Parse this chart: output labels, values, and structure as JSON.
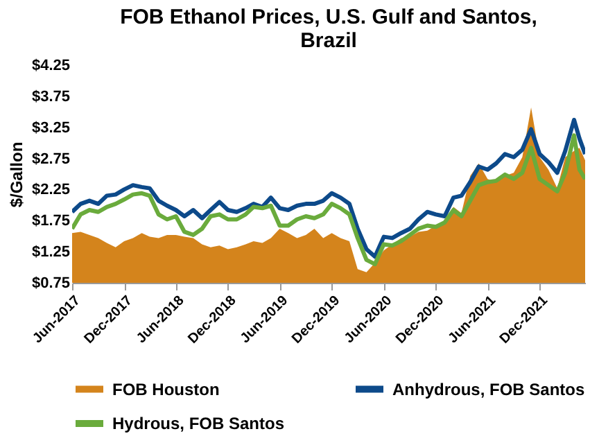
{
  "chart_data": {
    "type": "line",
    "title": "FOB Ethanol Prices, U.S. Gulf and Santos, Brazil",
    "ylabel": "$/Gallon",
    "x": [
      "2017-06-01",
      "2017-07-01",
      "2017-08-01",
      "2017-09-01",
      "2017-10-01",
      "2017-11-01",
      "2017-12-01",
      "2018-01-01",
      "2018-02-01",
      "2018-03-01",
      "2018-04-01",
      "2018-05-01",
      "2018-06-01",
      "2018-07-01",
      "2018-08-01",
      "2018-09-01",
      "2018-10-01",
      "2018-11-01",
      "2018-12-01",
      "2019-01-01",
      "2019-02-01",
      "2019-03-01",
      "2019-04-01",
      "2019-05-01",
      "2019-06-01",
      "2019-07-01",
      "2019-08-01",
      "2019-09-01",
      "2019-10-01",
      "2019-11-01",
      "2019-12-01",
      "2020-01-01",
      "2020-02-01",
      "2020-03-01",
      "2020-04-01",
      "2020-05-01",
      "2020-06-01",
      "2020-07-01",
      "2020-08-01",
      "2020-09-01",
      "2020-10-01",
      "2020-11-01",
      "2020-12-01",
      "2021-01-01",
      "2021-02-01",
      "2021-03-01",
      "2021-04-01",
      "2021-05-01",
      "2021-06-01",
      "2021-07-01",
      "2021-08-01",
      "2021-09-01",
      "2021-10-01",
      "2021-11-01",
      "2021-12-01",
      "2022-01-01",
      "2022-02-01",
      "2022-03-01",
      "2022-04-01",
      "2022-04-20",
      "2022-05-10"
    ],
    "series": [
      {
        "name": "FOB Houston",
        "type": "area",
        "color": "#d4841c",
        "values": [
          1.55,
          1.57,
          1.52,
          1.47,
          1.39,
          1.32,
          1.42,
          1.47,
          1.55,
          1.49,
          1.47,
          1.52,
          1.52,
          1.49,
          1.47,
          1.37,
          1.32,
          1.35,
          1.29,
          1.32,
          1.37,
          1.42,
          1.39,
          1.47,
          1.62,
          1.55,
          1.47,
          1.52,
          1.62,
          1.47,
          1.55,
          1.47,
          1.42,
          0.97,
          0.92,
          1.07,
          1.27,
          1.37,
          1.47,
          1.49,
          1.57,
          1.59,
          1.67,
          1.72,
          1.97,
          1.87,
          2.47,
          2.67,
          2.42,
          2.37,
          2.47,
          2.52,
          2.77,
          3.57,
          2.77,
          2.57,
          2.27,
          2.77,
          2.87,
          2.92,
          2.72
        ]
      },
      {
        "name": "Anhydrous, FOB Santos",
        "color": "#0d4a8a",
        "values": [
          1.89,
          2.02,
          2.07,
          2.02,
          2.15,
          2.17,
          2.25,
          2.32,
          2.29,
          2.27,
          2.07,
          1.99,
          1.92,
          1.82,
          1.92,
          1.79,
          1.92,
          2.05,
          1.92,
          1.89,
          1.95,
          2.02,
          1.97,
          2.12,
          1.95,
          1.92,
          1.99,
          2.02,
          2.02,
          2.07,
          2.19,
          2.12,
          2.02,
          1.62,
          1.29,
          1.17,
          1.49,
          1.47,
          1.55,
          1.62,
          1.77,
          1.89,
          1.85,
          1.82,
          2.12,
          2.15,
          2.37,
          2.62,
          2.57,
          2.67,
          2.82,
          2.77,
          2.89,
          3.22,
          2.82,
          2.69,
          2.52,
          2.87,
          3.37,
          3.07,
          2.82
        ]
      },
      {
        "name": "Hydrous, FOB Santos",
        "color": "#6aab3c",
        "values": [
          1.62,
          1.85,
          1.92,
          1.89,
          1.97,
          2.02,
          2.09,
          2.17,
          2.19,
          2.15,
          1.85,
          1.77,
          1.82,
          1.57,
          1.52,
          1.62,
          1.82,
          1.85,
          1.77,
          1.77,
          1.85,
          1.97,
          1.95,
          1.99,
          1.67,
          1.67,
          1.77,
          1.82,
          1.79,
          1.85,
          2.02,
          1.95,
          1.85,
          1.47,
          1.12,
          1.05,
          1.37,
          1.35,
          1.42,
          1.52,
          1.62,
          1.67,
          1.65,
          1.72,
          1.92,
          1.82,
          2.07,
          2.32,
          2.37,
          2.39,
          2.49,
          2.42,
          2.52,
          2.92,
          2.42,
          2.32,
          2.22,
          2.52,
          3.12,
          2.57,
          2.42
        ]
      }
    ],
    "xlim": [
      "2017-06-01",
      "2022-05-10"
    ],
    "xticks": [
      {
        "value": "2017-06-01",
        "label": "Jun-2017"
      },
      {
        "value": "2017-12-01",
        "label": "Dec-2017"
      },
      {
        "value": "2018-06-01",
        "label": "Jun-2018"
      },
      {
        "value": "2018-12-01",
        "label": "Dec-2018"
      },
      {
        "value": "2019-06-01",
        "label": "Jun-2019"
      },
      {
        "value": "2019-12-01",
        "label": "Dec-2019"
      },
      {
        "value": "2020-06-01",
        "label": "Jun-2020"
      },
      {
        "value": "2020-12-01",
        "label": "Dec-2020"
      },
      {
        "value": "2021-06-01",
        "label": "Jun-2021"
      },
      {
        "value": "2021-12-01",
        "label": "Dec-2021"
      }
    ],
    "ylim": [
      0.75,
      4.25
    ],
    "yticks": [
      {
        "value": 0.75,
        "label": "$0.75"
      },
      {
        "value": 1.25,
        "label": "$1.25"
      },
      {
        "value": 1.75,
        "label": "$1.75"
      },
      {
        "value": 2.25,
        "label": "$2.25"
      },
      {
        "value": 2.75,
        "label": "$2.75"
      },
      {
        "value": 3.25,
        "label": "$3.25"
      },
      {
        "value": 3.75,
        "label": "$3.75"
      },
      {
        "value": 4.25,
        "label": "$4.25"
      }
    ],
    "grid": false,
    "legend": "bottom"
  }
}
